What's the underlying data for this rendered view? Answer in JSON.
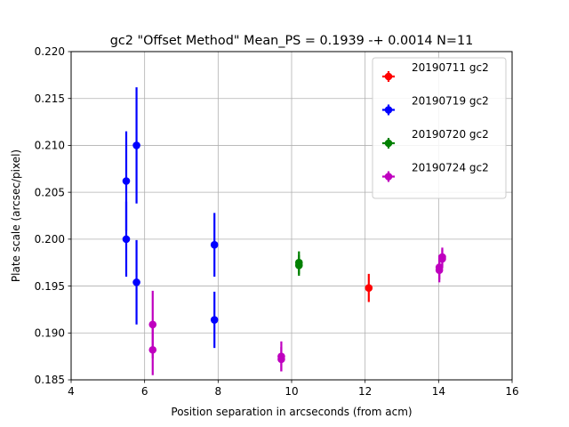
{
  "chart_data": {
    "type": "scatter",
    "title": "gc2 \"Offset Method\"   Mean_PS = 0.1939 -+ 0.0014 N=11",
    "xlabel": "Position separation in arcseconds (from acm)",
    "ylabel": "Plate scale (arcsec/pixel)",
    "xlim": [
      4,
      16
    ],
    "ylim": [
      0.185,
      0.22
    ],
    "xticks": [
      "4",
      "6",
      "8",
      "10",
      "12",
      "14",
      "16"
    ],
    "yticks": [
      "0.185",
      "0.190",
      "0.195",
      "0.200",
      "0.205",
      "0.210",
      "0.215",
      "0.220"
    ],
    "grid": true,
    "error_bars": "vertical",
    "legend_position": "top-right",
    "series": [
      {
        "name": "20190711 gc2",
        "color": "#ff0000",
        "points": [
          {
            "x": 12.1,
            "y": 0.1948,
            "err": 0.0015
          }
        ]
      },
      {
        "name": "20190719 gc2",
        "color": "#0000ff",
        "points": [
          {
            "x": 5.5,
            "y": 0.2062,
            "err": 0.0053
          },
          {
            "x": 5.5,
            "y": 0.2,
            "err": 0.004
          },
          {
            "x": 5.78,
            "y": 0.21,
            "err": 0.0062
          },
          {
            "x": 5.78,
            "y": 0.1954,
            "err": 0.0045
          },
          {
            "x": 7.9,
            "y": 0.1994,
            "err": 0.0034
          },
          {
            "x": 7.9,
            "y": 0.1914,
            "err": 0.003
          }
        ]
      },
      {
        "name": "20190720 gc2",
        "color": "#008000",
        "points": [
          {
            "x": 10.2,
            "y": 0.1975,
            "err": 0.0012
          },
          {
            "x": 10.2,
            "y": 0.1972,
            "err": 0.0011
          }
        ]
      },
      {
        "name": "20190724 gc2",
        "color": "#bf00bf",
        "points": [
          {
            "x": 6.22,
            "y": 0.1909,
            "err": 0.0036
          },
          {
            "x": 6.22,
            "y": 0.1882,
            "err": 0.0027
          },
          {
            "x": 9.72,
            "y": 0.1875,
            "err": 0.0016
          },
          {
            "x": 9.72,
            "y": 0.1872,
            "err": 0.0013
          },
          {
            "x": 14.02,
            "y": 0.197,
            "err": 0.0013
          },
          {
            "x": 14.02,
            "y": 0.1967,
            "err": 0.0013
          },
          {
            "x": 14.1,
            "y": 0.1981,
            "err": 0.001
          },
          {
            "x": 14.1,
            "y": 0.1979,
            "err": 0.001
          }
        ]
      }
    ]
  }
}
